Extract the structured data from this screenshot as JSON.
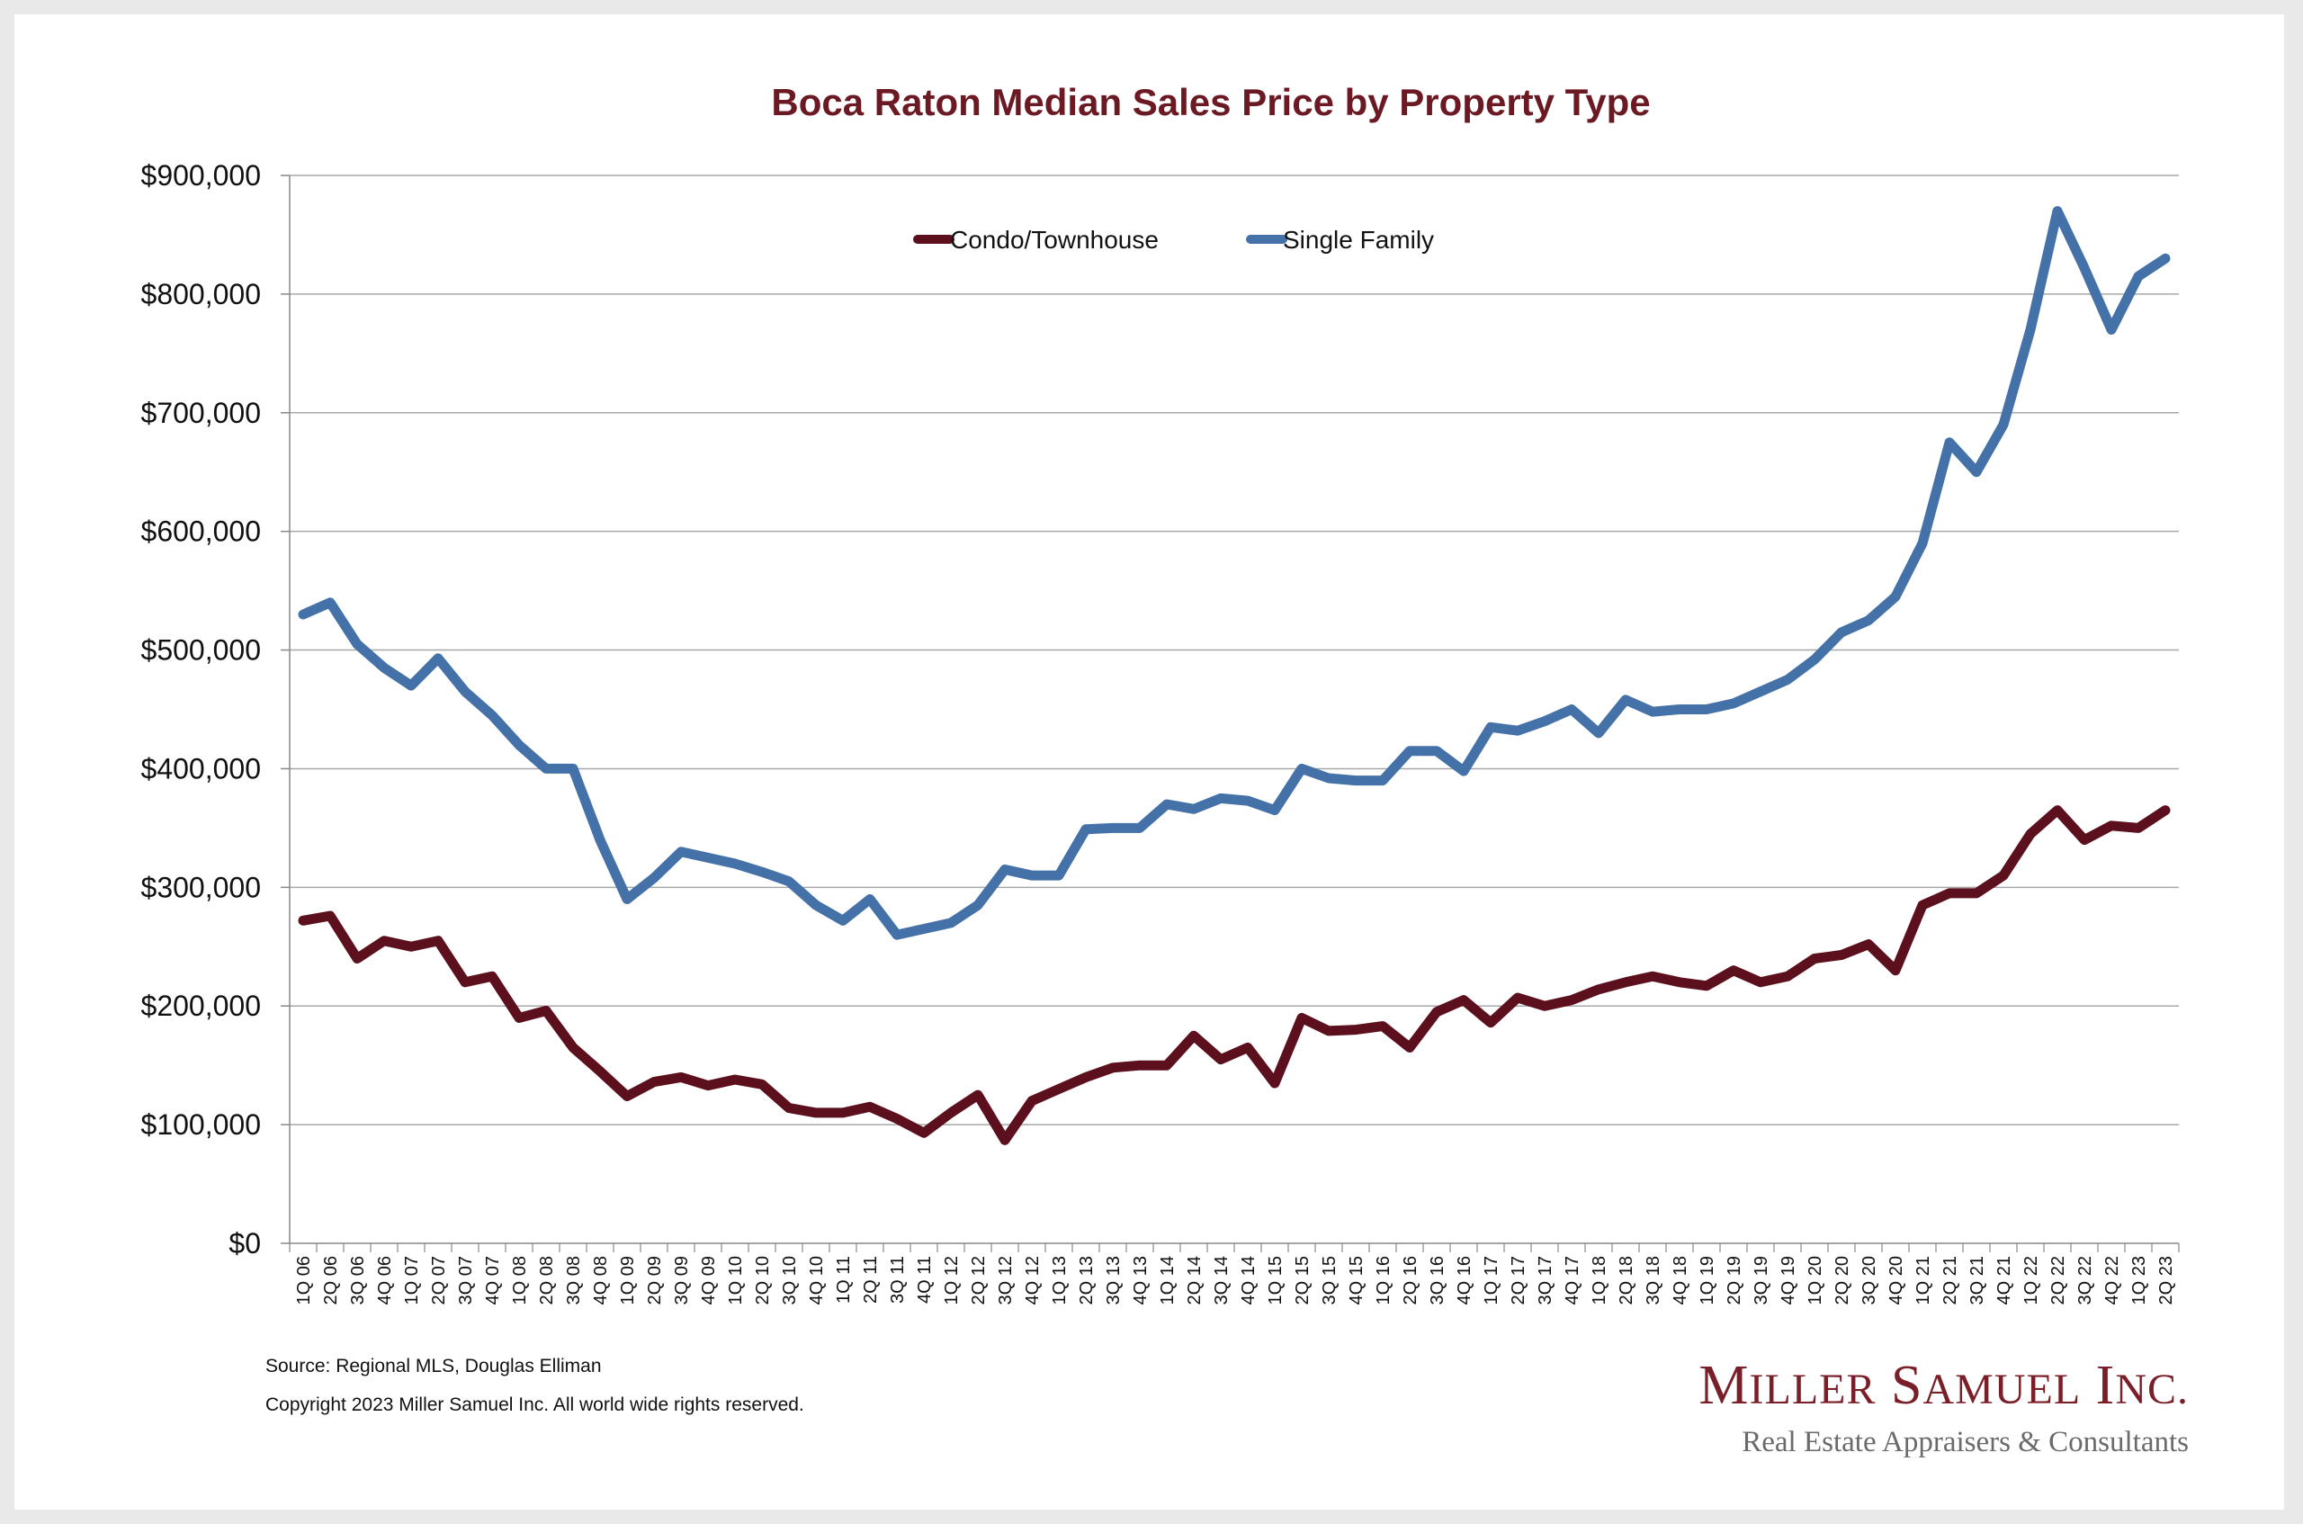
{
  "footer": {
    "source": "Source: Regional MLS, Douglas Elliman",
    "copyright": "Copyright 2023 Miller Samuel Inc.  All world wide rights reserved."
  },
  "logo": {
    "name": "Miller Samuel Inc.",
    "tagline": "Real Estate Appraisers & Consultants",
    "color": "#7a1f28"
  },
  "chart_data": {
    "type": "line",
    "title": "Boca Raton Median Sales Price by Property Type",
    "xlabel": "",
    "ylabel": "",
    "ylim": [
      0,
      900000
    ],
    "y_ticks": [
      "$0",
      "$100,000",
      "$200,000",
      "$300,000",
      "$400,000",
      "$500,000",
      "$600,000",
      "$700,000",
      "$800,000",
      "$900,000"
    ],
    "grid": true,
    "legend_position": "top-center",
    "categories": [
      "1Q 06",
      "2Q 06",
      "3Q 06",
      "4Q 06",
      "1Q 07",
      "2Q 07",
      "3Q 07",
      "4Q 07",
      "1Q 08",
      "2Q 08",
      "3Q 08",
      "4Q 08",
      "1Q 09",
      "2Q 09",
      "3Q 09",
      "4Q 09",
      "1Q 10",
      "2Q 10",
      "3Q 10",
      "4Q 10",
      "1Q 11",
      "2Q 11",
      "3Q 11",
      "4Q 11",
      "1Q 12",
      "2Q 12",
      "3Q 12",
      "4Q 12",
      "1Q 13",
      "2Q 13",
      "3Q 13",
      "4Q 13",
      "1Q 14",
      "2Q 14",
      "3Q 14",
      "4Q 14",
      "1Q 15",
      "2Q 15",
      "3Q 15",
      "4Q 15",
      "1Q 16",
      "2Q 16",
      "3Q 16",
      "4Q 16",
      "1Q 17",
      "2Q 17",
      "3Q 17",
      "4Q 17",
      "1Q 18",
      "2Q 18",
      "3Q 18",
      "4Q 18",
      "1Q 19",
      "2Q 19",
      "3Q 19",
      "4Q 19",
      "1Q 20",
      "2Q 20",
      "3Q 20",
      "4Q 20",
      "1Q 21",
      "2Q 21",
      "3Q 21",
      "4Q 21",
      "1Q 22",
      "2Q 22",
      "3Q 22",
      "4Q 22",
      "1Q 23",
      "2Q 23"
    ],
    "series": [
      {
        "name": "Condo/Townhouse",
        "color": "#5c0f1c",
        "values": [
          272000,
          276000,
          240000,
          255000,
          250000,
          255000,
          220000,
          225000,
          190000,
          196000,
          165000,
          145000,
          124000,
          136000,
          140000,
          133000,
          138000,
          134000,
          114000,
          110000,
          110000,
          115000,
          105000,
          93000,
          110000,
          125000,
          87000,
          120000,
          130000,
          140000,
          148000,
          150000,
          150000,
          175000,
          155000,
          165000,
          135000,
          190000,
          179000,
          180000,
          183000,
          165000,
          195000,
          205000,
          186000,
          207000,
          200000,
          205000,
          214000,
          220000,
          225000,
          220000,
          217000,
          230000,
          220000,
          225000,
          240000,
          243000,
          252000,
          230000,
          285000,
          295000,
          295000,
          310000,
          345000,
          365000,
          340000,
          352000,
          350000,
          365000
        ]
      },
      {
        "name": "Single Family",
        "color": "#4472a8",
        "values": [
          530000,
          540000,
          505000,
          485000,
          470000,
          493000,
          465000,
          445000,
          420000,
          400000,
          400000,
          340000,
          290000,
          308000,
          330000,
          325000,
          320000,
          313000,
          305000,
          285000,
          272000,
          290000,
          260000,
          265000,
          270000,
          285000,
          315000,
          310000,
          310000,
          349000,
          350000,
          350000,
          370000,
          366000,
          375000,
          373000,
          365000,
          400000,
          392000,
          390000,
          390000,
          415000,
          415000,
          398000,
          435000,
          432000,
          440000,
          450000,
          430000,
          458000,
          448000,
          450000,
          450000,
          455000,
          465000,
          475000,
          492000,
          515000,
          525000,
          545000,
          590000,
          675000,
          650000,
          690000,
          770000,
          870000,
          822000,
          770000,
          815000,
          830000
        ]
      }
    ]
  }
}
